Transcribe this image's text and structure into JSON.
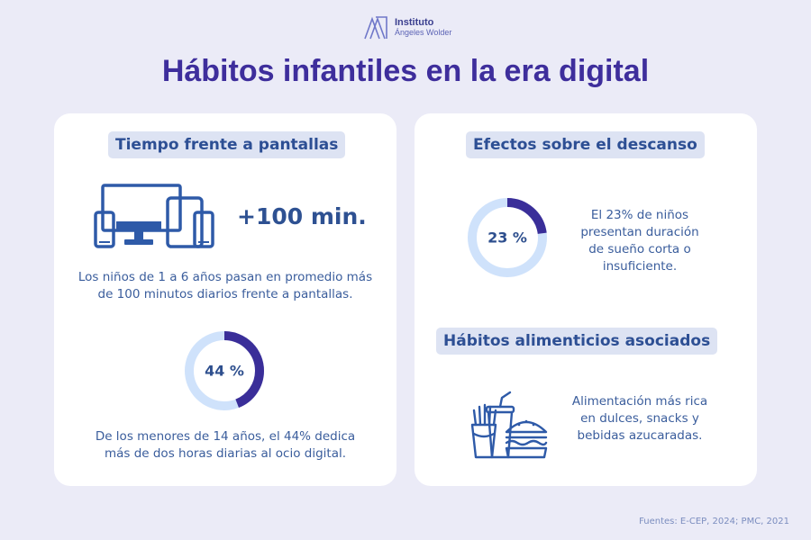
{
  "logo": {
    "line1": "Instituto",
    "line2": "Ángeles Wolder"
  },
  "title": "Hábitos infantiles en la era digital",
  "left_card": {
    "heading": "Tiempo frente a pantallas",
    "stat": "+100 min.",
    "stat_text": "Los niños de 1 a 6 años pasan en promedio más de 100 minutos diarios frente a pantallas.",
    "donut_value": 44,
    "donut_label": "44 %",
    "donut_text": "De los menores de 14 años, el 44% dedica más de dos horas diarias al ocio digital."
  },
  "right_card": {
    "rest_heading": "Efectos sobre el descanso",
    "donut_value": 23,
    "donut_label": "23 %",
    "rest_text": "El 23% de niños presentan duración de sueño corta o insuficiente.",
    "food_heading": "Hábitos alimenticios asociados",
    "food_text": "Alimentación más rica en dulces, snacks y bebidas azucaradas."
  },
  "sources": "Fuentes: E-CEP, 2024; PMC, 2021",
  "colors": {
    "accent": "#3e2e9c",
    "ring_track": "#cfe2fb",
    "ring_fill": "#3a2e99",
    "icon": "#2e5aa8"
  }
}
